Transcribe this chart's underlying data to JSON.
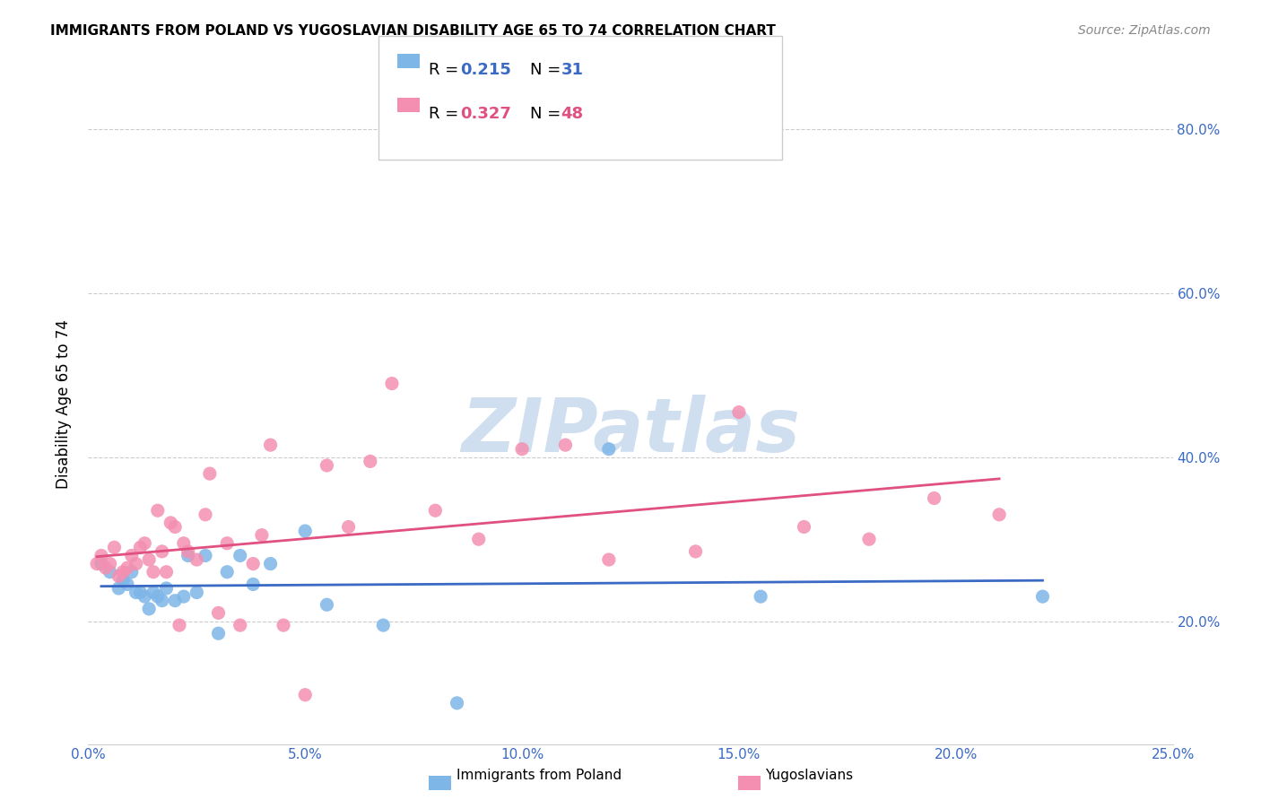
{
  "title": "IMMIGRANTS FROM POLAND VS YUGOSLAVIAN DISABILITY AGE 65 TO 74 CORRELATION CHART",
  "source": "Source: ZipAtlas.com",
  "ylabel": "Disability Age 65 to 74",
  "y_tick_labels": [
    "20.0%",
    "40.0%",
    "60.0%",
    "80.0%"
  ],
  "y_tick_values": [
    0.2,
    0.4,
    0.6,
    0.8
  ],
  "xlim": [
    0.0,
    0.25
  ],
  "ylim": [
    0.05,
    0.88
  ],
  "poland_color": "#7EB6E8",
  "yugoslav_color": "#F48FB1",
  "poland_line_color": "#3B6AC4",
  "yugoslav_line_color": "#E05080",
  "poland_x": [
    0.003,
    0.005,
    0.007,
    0.008,
    0.009,
    0.01,
    0.011,
    0.012,
    0.013,
    0.014,
    0.015,
    0.016,
    0.017,
    0.018,
    0.02,
    0.022,
    0.023,
    0.025,
    0.027,
    0.03,
    0.032,
    0.035,
    0.038,
    0.042,
    0.05,
    0.055,
    0.068,
    0.085,
    0.12,
    0.155,
    0.22
  ],
  "poland_y": [
    0.27,
    0.26,
    0.24,
    0.25,
    0.245,
    0.26,
    0.235,
    0.235,
    0.23,
    0.215,
    0.235,
    0.23,
    0.225,
    0.24,
    0.225,
    0.23,
    0.28,
    0.235,
    0.28,
    0.185,
    0.26,
    0.28,
    0.245,
    0.27,
    0.31,
    0.22,
    0.195,
    0.1,
    0.41,
    0.23,
    0.23
  ],
  "yugoslav_x": [
    0.002,
    0.003,
    0.004,
    0.005,
    0.006,
    0.007,
    0.008,
    0.009,
    0.01,
    0.011,
    0.012,
    0.013,
    0.014,
    0.015,
    0.016,
    0.017,
    0.018,
    0.019,
    0.02,
    0.021,
    0.022,
    0.023,
    0.025,
    0.027,
    0.028,
    0.03,
    0.032,
    0.035,
    0.038,
    0.04,
    0.042,
    0.045,
    0.05,
    0.055,
    0.06,
    0.065,
    0.07,
    0.08,
    0.09,
    0.1,
    0.11,
    0.12,
    0.14,
    0.15,
    0.165,
    0.18,
    0.195,
    0.21
  ],
  "yugoslav_y": [
    0.27,
    0.28,
    0.265,
    0.27,
    0.29,
    0.255,
    0.26,
    0.265,
    0.28,
    0.27,
    0.29,
    0.295,
    0.275,
    0.26,
    0.335,
    0.285,
    0.26,
    0.32,
    0.315,
    0.195,
    0.295,
    0.285,
    0.275,
    0.33,
    0.38,
    0.21,
    0.295,
    0.195,
    0.27,
    0.305,
    0.415,
    0.195,
    0.11,
    0.39,
    0.315,
    0.395,
    0.49,
    0.335,
    0.3,
    0.41,
    0.415,
    0.275,
    0.285,
    0.455,
    0.315,
    0.3,
    0.35,
    0.33
  ],
  "watermark": "ZIPatlas",
  "watermark_color": "#d0dff0",
  "background_color": "#ffffff",
  "grid_color": "#cccccc"
}
